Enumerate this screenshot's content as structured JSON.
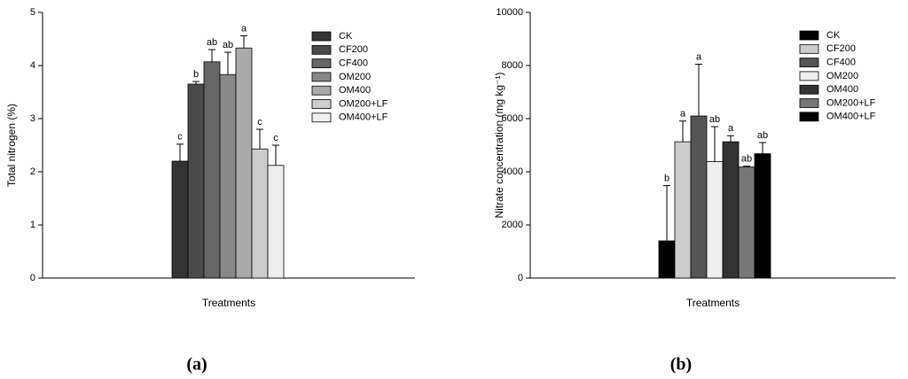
{
  "chart_data": [
    {
      "type": "bar",
      "panel_label": "(a)",
      "ylabel": "Total nitrogen (%)",
      "xlabel": "Treatments",
      "ylim": [
        0,
        5
      ],
      "yticks": [
        0,
        1,
        2,
        3,
        4,
        5
      ],
      "series": [
        {
          "name": "CK",
          "color": "#333333",
          "values": [
            2.2
          ],
          "errors": [
            0.32
          ],
          "letter": "c"
        },
        {
          "name": "CF200",
          "color": "#4a4a4a",
          "values": [
            3.65
          ],
          "errors": [
            0.05
          ],
          "letter": "b"
        },
        {
          "name": "CF400",
          "color": "#666666",
          "values": [
            4.07
          ],
          "errors": [
            0.23
          ],
          "letter": "ab"
        },
        {
          "name": "OM200",
          "color": "#888888",
          "values": [
            3.83
          ],
          "errors": [
            0.42
          ],
          "letter": "ab"
        },
        {
          "name": "OM400",
          "color": "#aaaaaa",
          "values": [
            4.33
          ],
          "errors": [
            0.23
          ],
          "letter": "a"
        },
        {
          "name": "OM200+LF",
          "color": "#cccccc",
          "values": [
            2.43
          ],
          "errors": [
            0.37
          ],
          "letter": "c"
        },
        {
          "name": "OM400+LF",
          "color": "#eeeeee",
          "values": [
            2.12
          ],
          "errors": [
            0.38
          ],
          "letter": "c"
        }
      ]
    },
    {
      "type": "bar",
      "panel_label": "(b)",
      "ylabel": "Nitrate concentration (mg kg⁻¹)",
      "xlabel": "Treatments",
      "ylim": [
        0,
        10000
      ],
      "yticks": [
        0,
        2000,
        4000,
        6000,
        8000,
        10000
      ],
      "series": [
        {
          "name": "CK",
          "color": "#000000",
          "values": [
            1400
          ],
          "errors": [
            2080
          ],
          "letter": "b"
        },
        {
          "name": "CF200",
          "color": "#cccccc",
          "values": [
            5130
          ],
          "errors": [
            780
          ],
          "letter": "a"
        },
        {
          "name": "CF400",
          "color": "#555555",
          "values": [
            6100
          ],
          "errors": [
            1950
          ],
          "letter": "a"
        },
        {
          "name": "OM200",
          "color": "#eeeeee",
          "values": [
            4380
          ],
          "errors": [
            1320
          ],
          "letter": "ab"
        },
        {
          "name": "OM400",
          "color": "#333333",
          "values": [
            5130
          ],
          "errors": [
            230
          ],
          "letter": "a"
        },
        {
          "name": "OM200+LF",
          "color": "#777777",
          "values": [
            4180
          ],
          "errors": [
            30
          ],
          "letter": "ab"
        },
        {
          "name": "OM400+LF",
          "color": "#000000",
          "values": [
            4680
          ],
          "errors": [
            420
          ],
          "letter": "ab"
        }
      ]
    }
  ]
}
